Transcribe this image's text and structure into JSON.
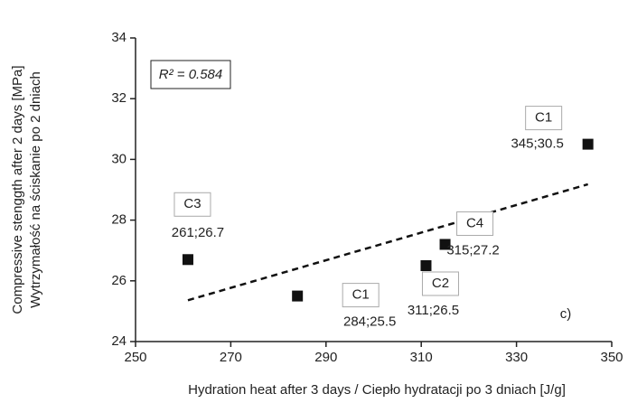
{
  "chart_data": {
    "type": "scatter",
    "x_label": "Hydration heat after 3 days / Ciepło hydratacji po 3 dniach [J/g]",
    "y_label": [
      "Compressive stenggth after 2 days [MPa]",
      "Wytrzymałość na ściskanie po 2 dniach"
    ],
    "series": [
      {
        "color": "#111111",
        "x": [
          261,
          284,
          311,
          315,
          345
        ],
        "values": [
          26.7,
          25.5,
          26.5,
          27.2,
          30.5
        ],
        "point_labels": [
          "C3",
          "C1",
          "C2",
          "C4",
          "C1"
        ],
        "value_labels": [
          "261;26.7",
          "284;25.5",
          "311;26.5",
          "315;27.2",
          "345;30.5"
        ]
      }
    ],
    "trendline": {
      "x": [
        261,
        345
      ],
      "y": [
        25.36,
        29.18
      ],
      "style": "dashed"
    },
    "annotations": [
      "R² = 0.584",
      "c)"
    ],
    "xlim": [
      250,
      350
    ],
    "xticks": [
      250,
      270,
      290,
      310,
      330,
      350
    ],
    "ylim": [
      24,
      34
    ],
    "yticks": [
      24,
      26,
      28,
      30,
      32,
      34
    ]
  }
}
